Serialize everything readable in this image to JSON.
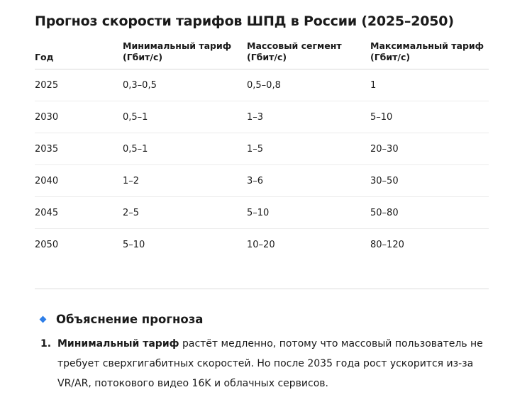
{
  "document": {
    "title": "Прогноз скорости тарифов ШПД в России (2025–2050)"
  },
  "table": {
    "headers": [
      {
        "line1": "Год",
        "line2": ""
      },
      {
        "line1": "Минимальный тариф",
        "line2": "(Гбит/с)"
      },
      {
        "line1": "Массовый сегмент",
        "line2": "(Гбит/с)"
      },
      {
        "line1": "Максимальный тариф",
        "line2": "(Гбит/с)"
      }
    ],
    "rows": [
      [
        "2025",
        "0,3–0,5",
        "0,5–0,8",
        "1"
      ],
      [
        "2030",
        "0,5–1",
        "1–3",
        "5–10"
      ],
      [
        "2035",
        "0,5–1",
        "1–5",
        "20–30"
      ],
      [
        "2040",
        "1–2",
        "3–6",
        "30–50"
      ],
      [
        "2045",
        "2–5",
        "5–10",
        "50–80"
      ],
      [
        "2050",
        "5–10",
        "10–20",
        "80–120"
      ]
    ]
  },
  "explanation": {
    "heading": "Объяснение прогноза",
    "icon": "diamond-bullet-icon",
    "accent_color": "#2f7fe8",
    "items": [
      {
        "number": "1.",
        "bold": "Минимальный тариф",
        "text": " растёт медленно, потому что массовый пользователь не требует сверхгигабитных скоростей. Но после 2035 года рост ускорится из-за VR/AR, потокового видео 16K и облачных сервисов."
      }
    ]
  }
}
